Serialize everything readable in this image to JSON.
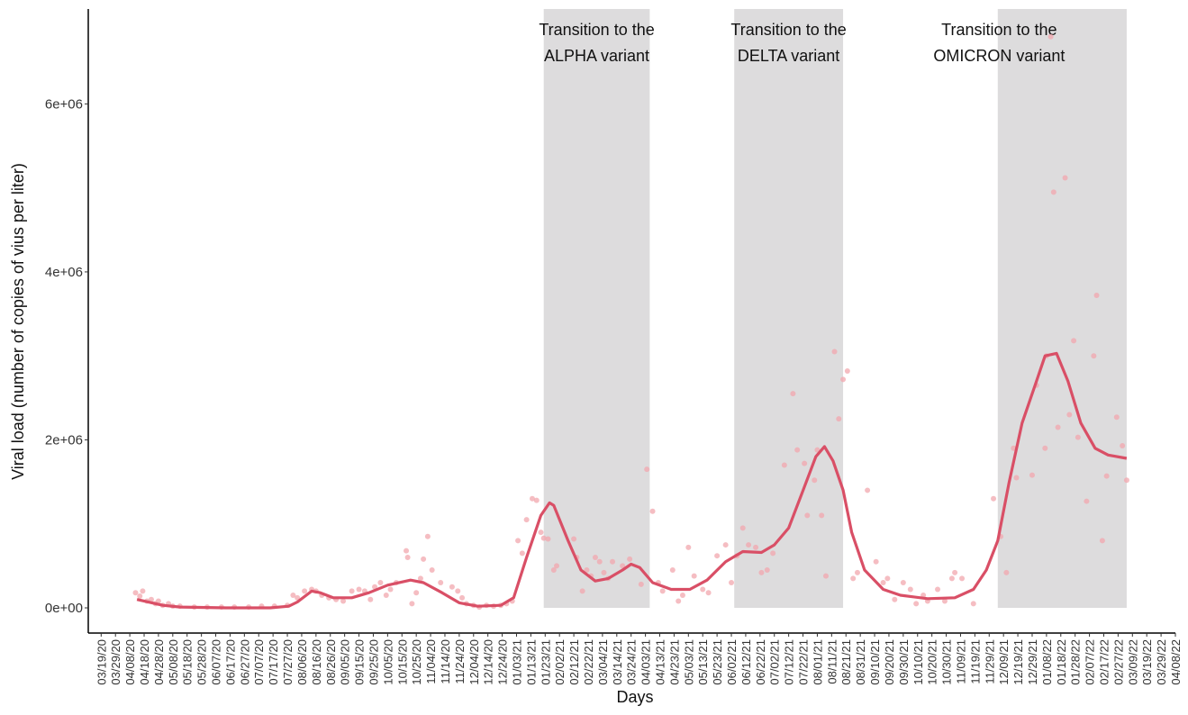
{
  "chart_data": {
    "type": "scatter",
    "x_label": "Days",
    "y_label": "Viral load (number of copies of vius per liter)",
    "xlim": [
      -9,
      750
    ],
    "ylim": [
      -300000,
      7130000
    ],
    "yticks": [
      {
        "value": 0,
        "label": "0e+00"
      },
      {
        "value": 2000000,
        "label": "2e+06"
      },
      {
        "value": 4000000,
        "label": "4e+06"
      },
      {
        "value": 6000000,
        "label": "6e+06"
      }
    ],
    "xticks": [
      {
        "value": 0,
        "label": "03/19/20"
      },
      {
        "value": 10,
        "label": "03/29/20"
      },
      {
        "value": 20,
        "label": "04/08/20"
      },
      {
        "value": 30,
        "label": "04/18/20"
      },
      {
        "value": 40,
        "label": "04/28/20"
      },
      {
        "value": 50,
        "label": "05/08/20"
      },
      {
        "value": 60,
        "label": "05/18/20"
      },
      {
        "value": 70,
        "label": "05/28/20"
      },
      {
        "value": 80,
        "label": "06/07/20"
      },
      {
        "value": 90,
        "label": "06/17/20"
      },
      {
        "value": 100,
        "label": "06/27/20"
      },
      {
        "value": 110,
        "label": "07/07/20"
      },
      {
        "value": 120,
        "label": "07/17/20"
      },
      {
        "value": 130,
        "label": "07/27/20"
      },
      {
        "value": 140,
        "label": "08/06/20"
      },
      {
        "value": 150,
        "label": "08/16/20"
      },
      {
        "value": 160,
        "label": "08/26/20"
      },
      {
        "value": 170,
        "label": "09/05/20"
      },
      {
        "value": 180,
        "label": "09/15/20"
      },
      {
        "value": 190,
        "label": "09/25/20"
      },
      {
        "value": 200,
        "label": "10/05/20"
      },
      {
        "value": 210,
        "label": "10/15/20"
      },
      {
        "value": 220,
        "label": "10/25/20"
      },
      {
        "value": 230,
        "label": "11/04/20"
      },
      {
        "value": 240,
        "label": "11/14/20"
      },
      {
        "value": 250,
        "label": "11/24/20"
      },
      {
        "value": 260,
        "label": "12/04/20"
      },
      {
        "value": 270,
        "label": "12/14/20"
      },
      {
        "value": 280,
        "label": "12/24/20"
      },
      {
        "value": 290,
        "label": "01/03/21"
      },
      {
        "value": 300,
        "label": "01/13/21"
      },
      {
        "value": 310,
        "label": "01/23/21"
      },
      {
        "value": 320,
        "label": "02/02/21"
      },
      {
        "value": 330,
        "label": "02/12/21"
      },
      {
        "value": 340,
        "label": "02/22/21"
      },
      {
        "value": 350,
        "label": "03/04/21"
      },
      {
        "value": 360,
        "label": "03/14/21"
      },
      {
        "value": 370,
        "label": "03/24/21"
      },
      {
        "value": 380,
        "label": "04/03/21"
      },
      {
        "value": 390,
        "label": "04/13/21"
      },
      {
        "value": 400,
        "label": "04/23/21"
      },
      {
        "value": 410,
        "label": "05/03/21"
      },
      {
        "value": 420,
        "label": "05/13/21"
      },
      {
        "value": 430,
        "label": "05/23/21"
      },
      {
        "value": 440,
        "label": "06/02/21"
      },
      {
        "value": 450,
        "label": "06/12/21"
      },
      {
        "value": 460,
        "label": "06/22/21"
      },
      {
        "value": 470,
        "label": "07/02/21"
      },
      {
        "value": 480,
        "label": "07/12/21"
      },
      {
        "value": 490,
        "label": "07/22/21"
      },
      {
        "value": 500,
        "label": "08/01/21"
      },
      {
        "value": 510,
        "label": "08/11/21"
      },
      {
        "value": 520,
        "label": "08/21/21"
      },
      {
        "value": 530,
        "label": "08/31/21"
      },
      {
        "value": 540,
        "label": "09/10/21"
      },
      {
        "value": 550,
        "label": "09/20/21"
      },
      {
        "value": 560,
        "label": "09/30/21"
      },
      {
        "value": 570,
        "label": "10/10/21"
      },
      {
        "value": 580,
        "label": "10/20/21"
      },
      {
        "value": 590,
        "label": "10/30/21"
      },
      {
        "value": 600,
        "label": "11/09/21"
      },
      {
        "value": 610,
        "label": "11/19/21"
      },
      {
        "value": 620,
        "label": "11/29/21"
      },
      {
        "value": 630,
        "label": "12/09/21"
      },
      {
        "value": 640,
        "label": "12/19/21"
      },
      {
        "value": 650,
        "label": "12/29/21"
      },
      {
        "value": 660,
        "label": "01/08/22"
      },
      {
        "value": 670,
        "label": "01/18/22"
      },
      {
        "value": 680,
        "label": "01/28/22"
      },
      {
        "value": 690,
        "label": "02/07/22"
      },
      {
        "value": 700,
        "label": "02/17/22"
      },
      {
        "value": 710,
        "label": "02/27/22"
      },
      {
        "value": 720,
        "label": "03/09/22"
      },
      {
        "value": 730,
        "label": "03/19/22"
      },
      {
        "value": 740,
        "label": "03/29/22"
      },
      {
        "value": 750,
        "label": "04/08/22"
      }
    ],
    "regions": [
      {
        "label": [
          "Transition to the",
          "ALPHA variant"
        ],
        "x": [
          309,
          383
        ],
        "color": "#dddcdd"
      },
      {
        "label": [
          "Transition to the",
          "DELTA variant"
        ],
        "x": [
          442,
          518
        ],
        "color": "#dddcdd"
      },
      {
        "label": [
          "Transition to the",
          "OMICRON variant"
        ],
        "x": [
          626,
          716
        ],
        "color": "#dddcdd"
      }
    ],
    "points": {
      "color": "#f2a7ae",
      "x": [
        24,
        27,
        29,
        32,
        35,
        38,
        40,
        43,
        47,
        50,
        55,
        65,
        74,
        84,
        93,
        103,
        112,
        121,
        130,
        134,
        137,
        142,
        147,
        150,
        154,
        159,
        164,
        169,
        175,
        180,
        184,
        188,
        191,
        195,
        199,
        202,
        206,
        213,
        214,
        217,
        220,
        223,
        225,
        228,
        231,
        237,
        245,
        249,
        252,
        255,
        260,
        264,
        269,
        274,
        279,
        283,
        287,
        291,
        294,
        297,
        301,
        304,
        307,
        309,
        312,
        316,
        318,
        330,
        332,
        336,
        339,
        342,
        345,
        348,
        351,
        354,
        357,
        364,
        369,
        377,
        381,
        385,
        389,
        392,
        399,
        403,
        406,
        410,
        414,
        420,
        424,
        430,
        436,
        440,
        444,
        448,
        452,
        457,
        461,
        465,
        469,
        477,
        483,
        486,
        491,
        493,
        498,
        500,
        503,
        506,
        512,
        515,
        518,
        521,
        525,
        528,
        535,
        541,
        546,
        549,
        554,
        560,
        565,
        569,
        574,
        577,
        584,
        589,
        594,
        596,
        601,
        609,
        623,
        628,
        632,
        637,
        639,
        650,
        653,
        659,
        660,
        663,
        665,
        668,
        673,
        676,
        679,
        682,
        688,
        693,
        695,
        699,
        702,
        709,
        713,
        716
      ],
      "values": [
        180000,
        140000,
        200000,
        80000,
        100000,
        50000,
        80000,
        30000,
        50000,
        20000,
        20000,
        10000,
        10000,
        10000,
        10000,
        10000,
        20000,
        20000,
        30000,
        150000,
        120000,
        200000,
        220000,
        200000,
        150000,
        120000,
        100000,
        80000,
        200000,
        220000,
        200000,
        100000,
        250000,
        300000,
        150000,
        220000,
        300000,
        680000,
        600000,
        50000,
        180000,
        350000,
        580000,
        850000,
        450000,
        300000,
        250000,
        200000,
        120000,
        50000,
        30000,
        10000,
        30000,
        20000,
        30000,
        50000,
        80000,
        800000,
        650000,
        1050000,
        1300000,
        1280000,
        900000,
        830000,
        820000,
        450000,
        500000,
        820000,
        600000,
        200000,
        450000,
        380000,
        600000,
        550000,
        420000,
        350000,
        550000,
        500000,
        580000,
        280000,
        1650000,
        1150000,
        300000,
        200000,
        450000,
        80000,
        150000,
        720000,
        380000,
        220000,
        180000,
        620000,
        750000,
        300000,
        620000,
        950000,
        750000,
        720000,
        420000,
        450000,
        650000,
        1700000,
        2550000,
        1880000,
        1720000,
        1100000,
        1520000,
        1880000,
        1100000,
        380000,
        3050000,
        2250000,
        2720000,
        2820000,
        350000,
        420000,
        1400000,
        550000,
        300000,
        350000,
        100000,
        300000,
        220000,
        50000,
        150000,
        80000,
        220000,
        80000,
        350000,
        420000,
        350000,
        50000,
        1300000,
        850000,
        420000,
        1900000,
        1550000,
        1580000,
        2650000,
        1900000,
        3000000,
        6800000,
        4950000,
        2150000,
        5120000,
        2300000,
        3180000,
        2030000,
        1270000,
        3000000,
        3720000,
        800000,
        1570000,
        2270000,
        1930000,
        1520000
      ]
    },
    "series": [
      {
        "color": "#d94f66",
        "x": [
          25,
          33,
          43,
          55,
          87,
          118,
          131,
          137,
          147,
          153,
          162,
          175,
          187,
          200,
          216,
          225,
          238,
          250,
          263,
          279,
          288,
          297,
          307,
          313,
          316,
          326,
          335,
          345,
          354,
          364,
          370,
          376,
          385,
          398,
          411,
          423,
          436,
          448,
          461,
          470,
          480,
          489,
          499,
          505,
          511,
          518,
          524,
          533,
          546,
          558,
          577,
          596,
          609,
          618,
          626,
          634,
          643,
          652,
          659,
          667,
          675,
          684,
          694,
          703,
          716
        ],
        "values": [
          100000,
          70000,
          30000,
          10000,
          0,
          0,
          20000,
          70000,
          200000,
          180000,
          120000,
          120000,
          180000,
          270000,
          330000,
          300000,
          180000,
          60000,
          20000,
          30000,
          120000,
          600000,
          1100000,
          1250000,
          1220000,
          800000,
          450000,
          320000,
          350000,
          450000,
          520000,
          480000,
          300000,
          220000,
          220000,
          330000,
          550000,
          670000,
          660000,
          750000,
          950000,
          1350000,
          1800000,
          1920000,
          1750000,
          1400000,
          900000,
          450000,
          220000,
          150000,
          110000,
          120000,
          220000,
          450000,
          800000,
          1500000,
          2200000,
          2650000,
          3000000,
          3030000,
          2700000,
          2200000,
          1900000,
          1820000,
          1780000
        ]
      }
    ]
  }
}
